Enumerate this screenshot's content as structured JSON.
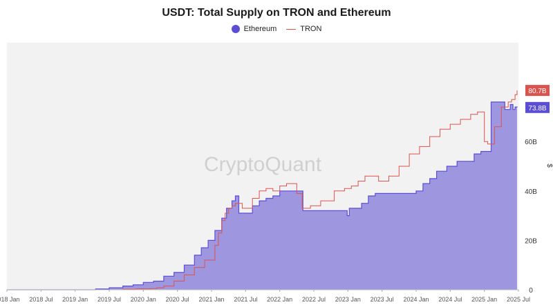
{
  "title": "USDT: Total Supply on TRON and Ethereum",
  "watermark": "CryptoQuant",
  "colors": {
    "ethereum": "#5b4ed3",
    "ethereum_fill": "#9f96e0",
    "tron": "#d9534f",
    "plot_bg": "#f2f2f2"
  },
  "chart_data": {
    "type": "area",
    "title": "USDT: Total Supply on TRON and Ethereum",
    "xlabel": "",
    "ylabel": "$",
    "ylim": [
      0,
      100
    ],
    "y_unit": "B",
    "y_ticks": [
      "0",
      "20B",
      "40B",
      "60B"
    ],
    "x_ticks": [
      "2018 Jan",
      "2018 Jul",
      "2019 Jan",
      "2019 Jul",
      "2020 Jan",
      "2020 Jul",
      "2021 Jan",
      "2021 Jul",
      "2022 Jan",
      "2022 Jul",
      "2023 Jan",
      "2023 Jul",
      "2024 Jan",
      "2024 Jul",
      "2025 Jan",
      "2025 Jul"
    ],
    "x_range": [
      2018.0,
      2025.5
    ],
    "legend": [
      "Ethereum",
      "TRON"
    ],
    "legend_position": "top-center",
    "last_values": {
      "TRON": "80.7B",
      "Ethereum": "73.8B"
    },
    "series": [
      {
        "name": "Ethereum",
        "style": "area",
        "x": [
          2018.0,
          2019.0,
          2019.3,
          2019.5,
          2019.7,
          2019.85,
          2020.0,
          2020.15,
          2020.3,
          2020.45,
          2020.6,
          2020.75,
          2020.85,
          2020.95,
          2021.05,
          2021.15,
          2021.22,
          2021.3,
          2021.35,
          2021.4,
          2021.5,
          2021.6,
          2021.7,
          2021.8,
          2021.9,
          2022.0,
          2022.1,
          2022.3,
          2022.34,
          2022.45,
          2022.6,
          2022.8,
          2022.95,
          2022.99,
          2023.0,
          2023.02,
          2023.1,
          2023.2,
          2023.3,
          2023.4,
          2023.6,
          2023.8,
          2024.0,
          2024.1,
          2024.2,
          2024.3,
          2024.45,
          2024.6,
          2024.7,
          2024.8,
          2024.85,
          2024.9,
          2024.95,
          2025.1,
          2025.2,
          2025.3,
          2025.35,
          2025.38,
          2025.42,
          2025.45,
          2025.48
        ],
        "values": [
          0,
          0,
          0.3,
          0.8,
          1.5,
          2.0,
          3.0,
          3.5,
          5.5,
          7,
          10,
          14,
          17,
          20,
          24,
          29,
          33,
          36,
          38,
          31,
          31,
          34,
          36,
          37,
          38,
          40,
          40,
          40,
          32,
          32,
          32,
          32,
          32,
          30,
          30,
          33,
          33,
          35,
          38,
          39,
          39,
          39,
          40,
          43,
          45,
          48,
          50,
          52,
          52,
          52,
          55,
          55,
          56,
          76,
          76,
          73,
          73,
          75,
          73,
          74,
          73.8
        ]
      },
      {
        "name": "TRON",
        "style": "line",
        "x": [
          2018.0,
          2019.5,
          2019.7,
          2019.9,
          2020.1,
          2020.2,
          2020.3,
          2020.45,
          2020.6,
          2020.75,
          2020.9,
          2021.05,
          2021.1,
          2021.15,
          2021.2,
          2021.25,
          2021.3,
          2021.35,
          2021.45,
          2021.6,
          2021.7,
          2021.8,
          2021.9,
          2022.0,
          2022.1,
          2022.25,
          2022.33,
          2022.45,
          2022.6,
          2022.8,
          2022.95,
          2023.05,
          2023.15,
          2023.25,
          2023.35,
          2023.45,
          2023.6,
          2023.75,
          2023.9,
          2024.05,
          2024.2,
          2024.35,
          2024.5,
          2024.65,
          2024.8,
          2024.9,
          2025.0,
          2025.05,
          2025.15,
          2025.25,
          2025.35,
          2025.4,
          2025.45,
          2025.48
        ],
        "values": [
          0,
          0,
          0.2,
          0.4,
          0.5,
          0.8,
          1.5,
          3.5,
          6,
          9,
          12,
          18,
          23,
          28,
          31,
          33,
          34,
          35,
          33,
          37,
          40,
          41,
          40,
          42,
          43,
          39,
          33,
          34,
          36,
          40,
          41,
          42,
          44,
          46,
          46,
          44,
          46,
          50,
          55,
          58,
          62,
          65,
          67,
          69,
          71,
          72,
          60,
          59,
          66,
          74,
          76,
          77,
          79,
          80.7
        ]
      }
    ]
  }
}
